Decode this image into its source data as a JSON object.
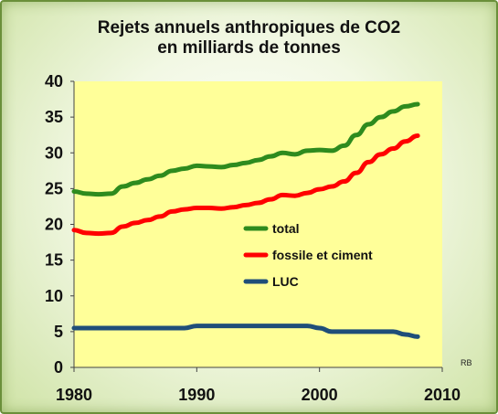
{
  "chart_data": {
    "type": "line",
    "title_line1": "Rejets annuels anthropiques  de CO2",
    "title_line2": "en milliards de tonnes",
    "xlabel": "",
    "ylabel": "",
    "xlim": [
      1980,
      2010
    ],
    "ylim": [
      0,
      40
    ],
    "xticks": [
      1980,
      1990,
      2000,
      2010
    ],
    "yticks": [
      0,
      5,
      10,
      15,
      20,
      25,
      30,
      35,
      40
    ],
    "grid": false,
    "legend_position": "center-right",
    "note": "RB",
    "plot_background": "#ffff99",
    "series": [
      {
        "name": "total",
        "color": "#2e8b1e",
        "x": [
          1980,
          1981,
          1982,
          1983,
          1984,
          1985,
          1986,
          1987,
          1988,
          1989,
          1990,
          1991,
          1992,
          1993,
          1994,
          1995,
          1996,
          1997,
          1998,
          1999,
          2000,
          2001,
          2002,
          2003,
          2004,
          2005,
          2006,
          2007,
          2008
        ],
        "values": [
          24.6,
          24.3,
          24.2,
          24.3,
          25.3,
          25.8,
          26.3,
          26.8,
          27.5,
          27.8,
          28.2,
          28.1,
          28.0,
          28.3,
          28.6,
          29.0,
          29.5,
          30.0,
          29.8,
          30.3,
          30.4,
          30.3,
          31.0,
          32.5,
          34.0,
          35.0,
          35.8,
          36.5,
          36.8
        ]
      },
      {
        "name": "fossile et ciment",
        "color": "#ff0000",
        "x": [
          1980,
          1981,
          1982,
          1983,
          1984,
          1985,
          1986,
          1987,
          1988,
          1989,
          1990,
          1991,
          1992,
          1993,
          1994,
          1995,
          1996,
          1997,
          1998,
          1999,
          2000,
          2001,
          2002,
          2003,
          2004,
          2005,
          2006,
          2007,
          2008
        ],
        "values": [
          19.2,
          18.8,
          18.7,
          18.8,
          19.7,
          20.2,
          20.6,
          21.1,
          21.8,
          22.1,
          22.3,
          22.3,
          22.2,
          22.4,
          22.7,
          23.0,
          23.5,
          24.1,
          24.0,
          24.4,
          24.9,
          25.3,
          26.0,
          27.2,
          28.7,
          29.8,
          30.6,
          31.6,
          32.4
        ]
      },
      {
        "name": "LUC",
        "color": "#1f4e79",
        "x": [
          1980,
          1982,
          1984,
          1986,
          1988,
          1989,
          1990,
          1992,
          1994,
          1996,
          1998,
          1999,
          2000,
          2001,
          2002,
          2004,
          2006,
          2007,
          2008
        ],
        "values": [
          5.5,
          5.5,
          5.5,
          5.5,
          5.5,
          5.5,
          5.8,
          5.8,
          5.8,
          5.8,
          5.8,
          5.8,
          5.5,
          5.0,
          5.0,
          5.0,
          5.0,
          4.6,
          4.3
        ]
      }
    ]
  }
}
